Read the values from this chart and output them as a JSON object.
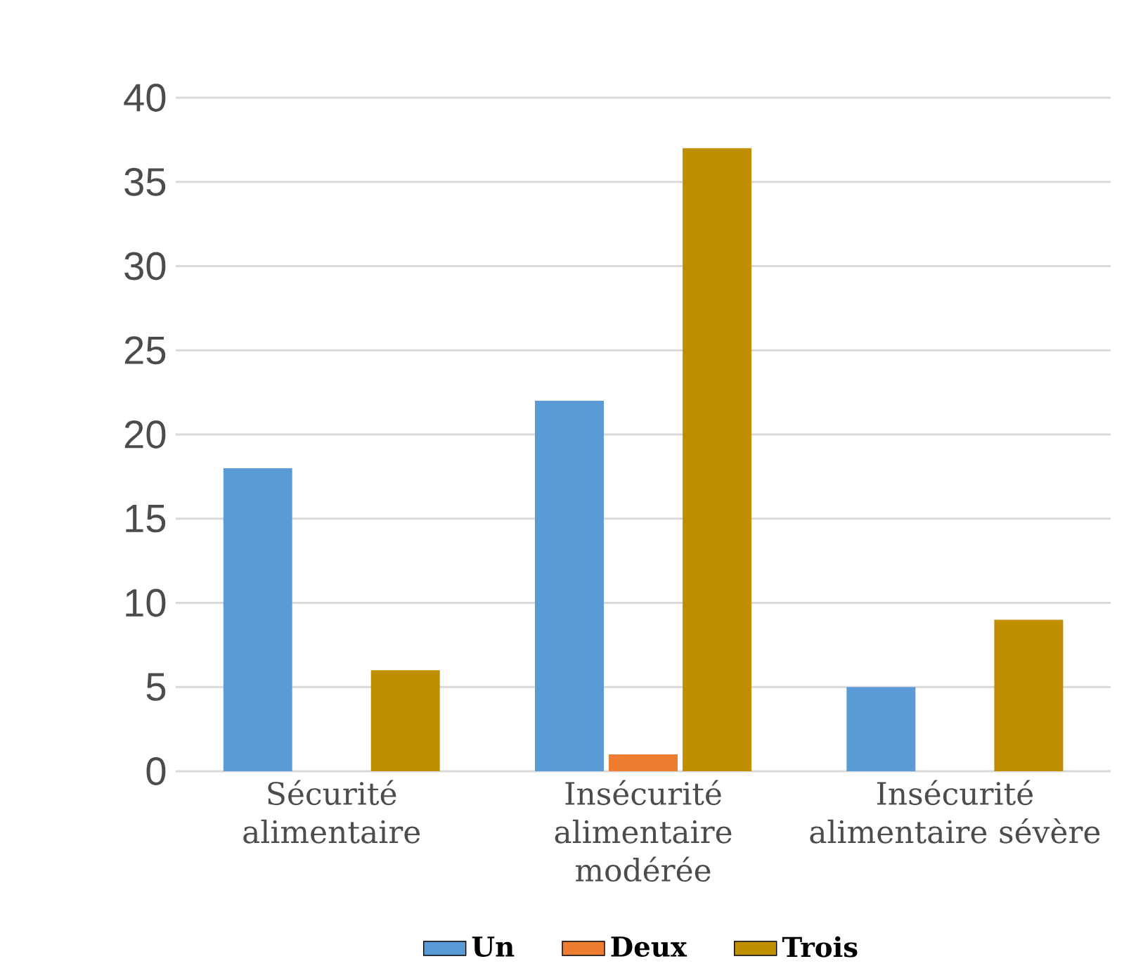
{
  "chart_data": {
    "type": "bar",
    "categories": [
      "Sécurité alimentaire",
      "Insécurité alimentaire modérée",
      "Insécurité alimentaire sévère"
    ],
    "series": [
      {
        "name": "Un",
        "color": "#5b9bd5",
        "values": [
          18,
          22,
          5
        ]
      },
      {
        "name": "Deux",
        "color": "#ed7d31",
        "values": [
          0,
          1,
          0
        ]
      },
      {
        "name": "Trois",
        "color": "#bf8f00",
        "values": [
          6,
          37,
          9
        ]
      }
    ],
    "ylim": [
      0,
      40
    ],
    "yticks": [
      0,
      5,
      10,
      15,
      20,
      25,
      30,
      35,
      40
    ],
    "grid": "y",
    "legend": "bottom"
  }
}
